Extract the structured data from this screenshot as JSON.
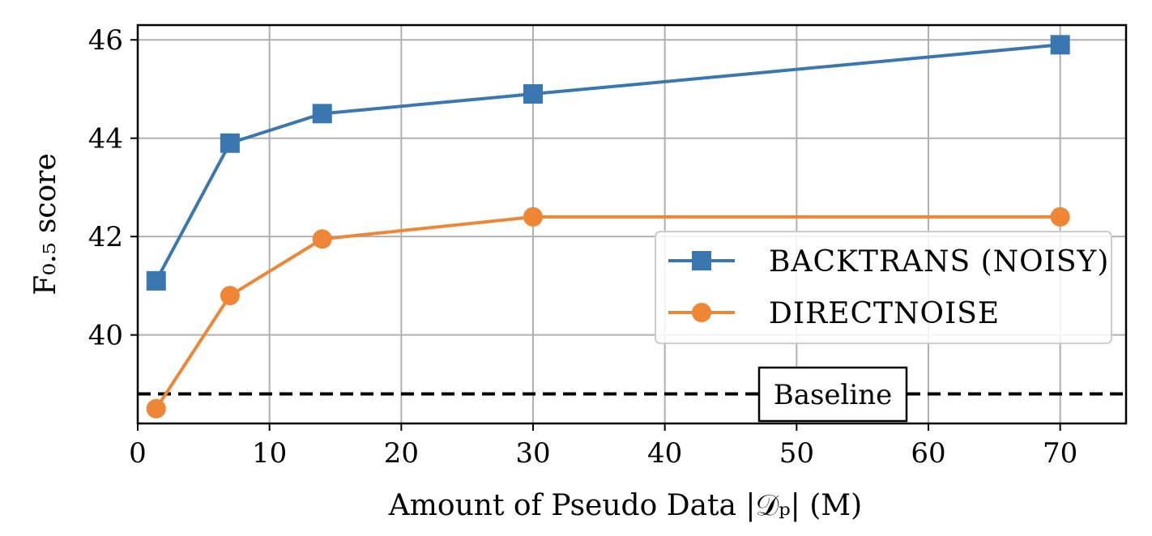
{
  "chart_data": {
    "type": "line",
    "title": "",
    "xlabel": "Amount of Pseudo Data |𝒟ₚ| (M)",
    "ylabel": "F₀.₅ score",
    "xlim": [
      0,
      75
    ],
    "ylim": [
      38.2,
      46.3
    ],
    "xticks": [
      0,
      10,
      20,
      30,
      40,
      50,
      60,
      70
    ],
    "yticks": [
      40,
      42,
      44,
      46
    ],
    "xtick_labels": [
      "0",
      "10",
      "20",
      "30",
      "40",
      "50",
      "60",
      "70"
    ],
    "ytick_labels": [
      "40",
      "42",
      "44",
      "46"
    ],
    "grid": true,
    "legend_position": "center-right",
    "series": [
      {
        "name": "BACKTRANS (NOISY)",
        "name_display": "Backtrans (noisy)",
        "color": "#3a77b0",
        "marker": "square",
        "x": [
          1.4,
          7,
          14,
          30,
          70
        ],
        "y": [
          41.1,
          43.9,
          44.5,
          44.9,
          45.9
        ]
      },
      {
        "name": "DIRECTNOISE",
        "name_display": "DirectNoise",
        "color": "#ef8636",
        "marker": "circle",
        "x": [
          1.4,
          7,
          14,
          30,
          70
        ],
        "y": [
          38.5,
          40.8,
          41.95,
          42.4,
          42.4
        ]
      }
    ],
    "baseline": {
      "label": "Baseline",
      "y": 38.8,
      "style": "dashed",
      "color": "#000000"
    }
  }
}
